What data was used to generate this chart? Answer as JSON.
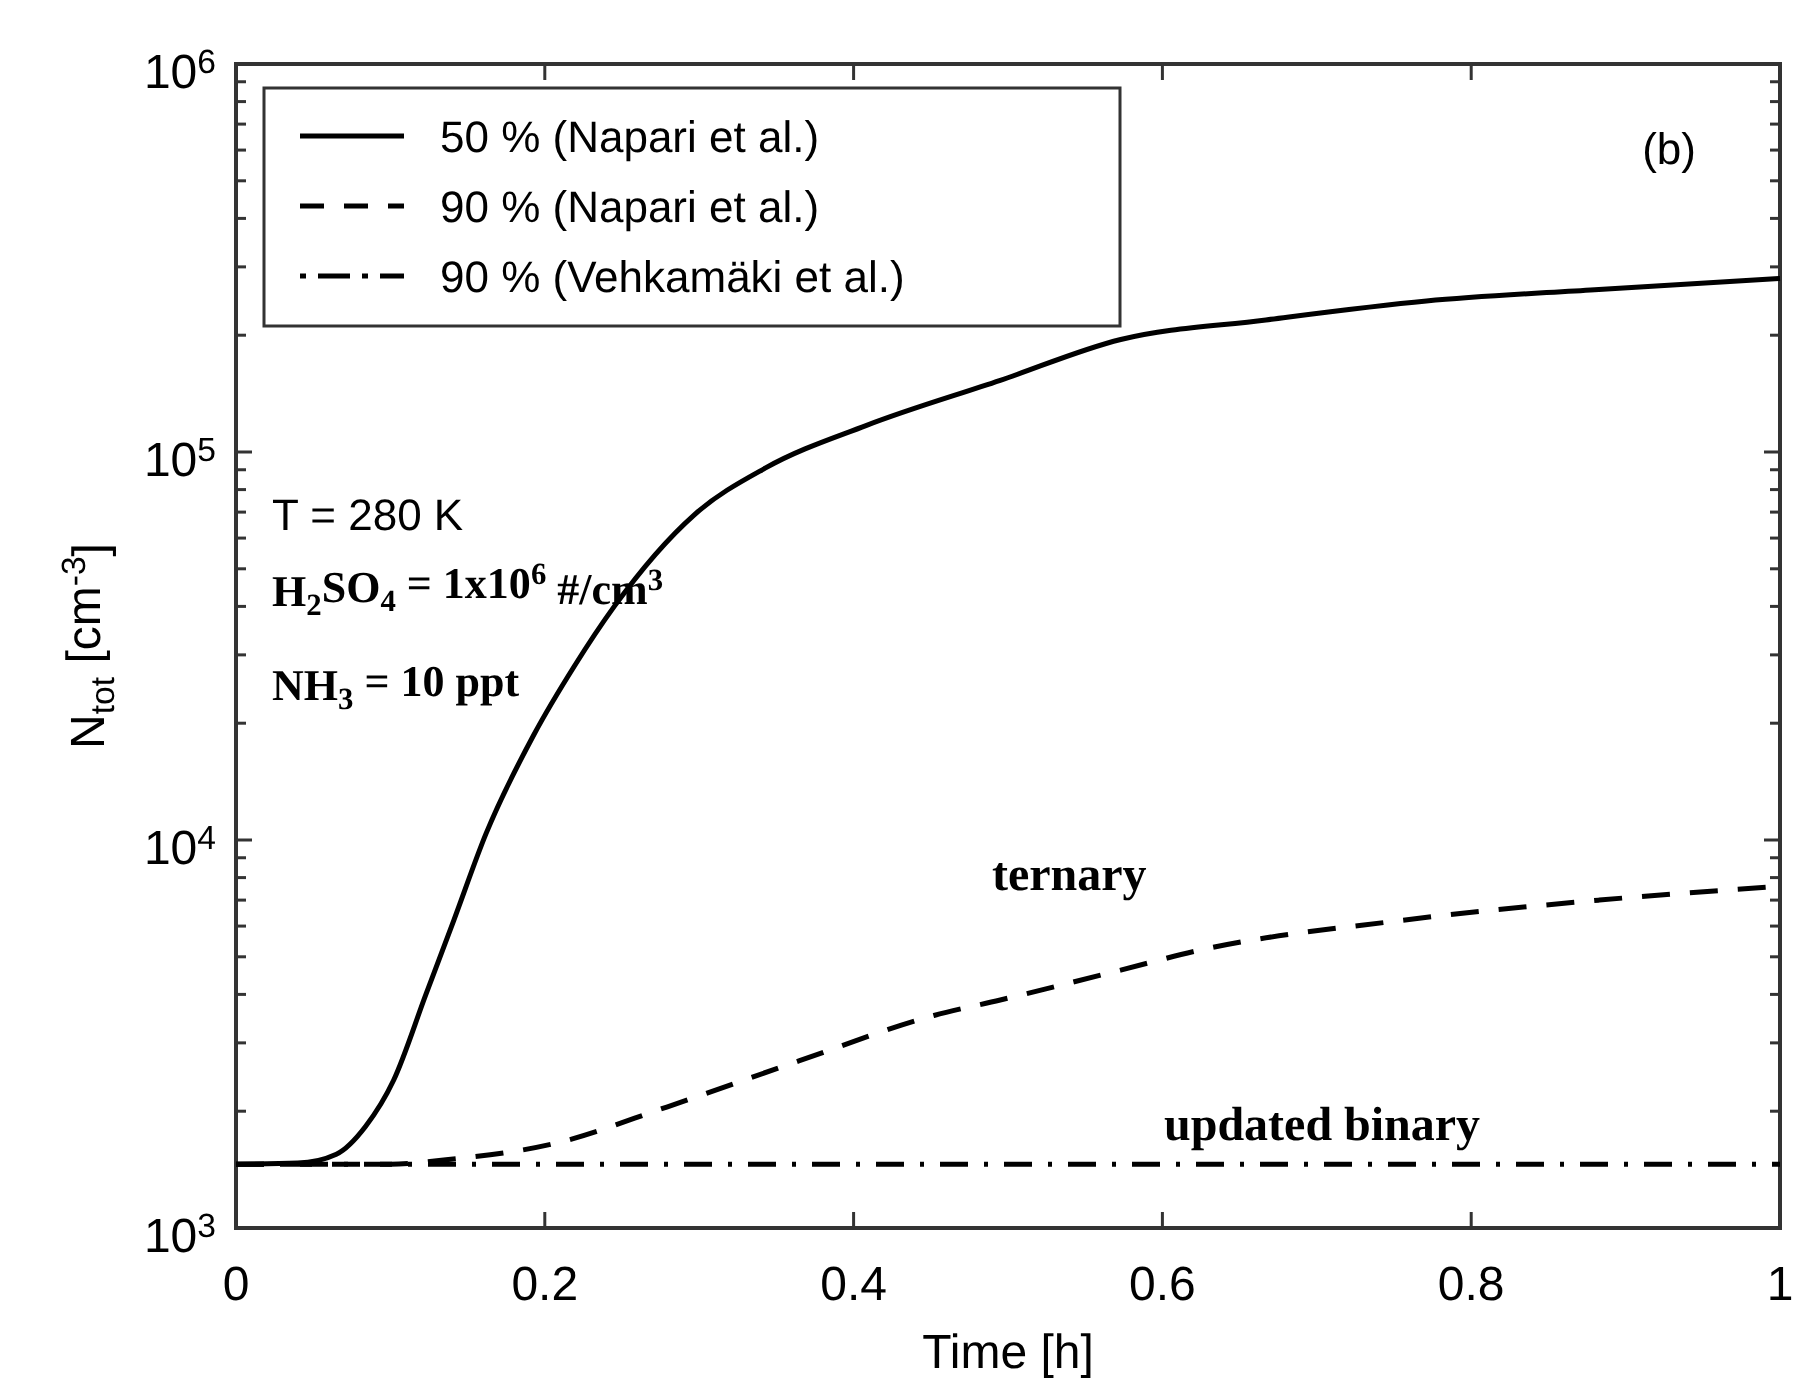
{
  "chart_data": {
    "type": "line",
    "xlabel": "Time  [h]",
    "ylabel": "N$_{tot}$  [cm$^{-3}$]",
    "log": "y",
    "xlim": [
      0,
      1
    ],
    "ylim": [
      1000,
      1000000
    ],
    "xticks": [
      0,
      0.2,
      0.4,
      0.6,
      0.8,
      1
    ],
    "yticks": [
      {
        "value": 1000,
        "label": "10$^{3}$"
      },
      {
        "value": 2000,
        "label": null
      },
      {
        "value": 3000,
        "label": null
      },
      {
        "value": 4000,
        "label": null
      },
      {
        "value": 5000,
        "label": null
      },
      {
        "value": 6000,
        "label": null
      },
      {
        "value": 7000,
        "label": null
      },
      {
        "value": 8000,
        "label": null
      },
      {
        "value": 9000,
        "label": null
      },
      {
        "value": 10000,
        "label": "10$^{4}$"
      },
      {
        "value": 20000,
        "label": null
      },
      {
        "value": 30000,
        "label": null
      },
      {
        "value": 40000,
        "label": null
      },
      {
        "value": 50000,
        "label": null
      },
      {
        "value": 60000,
        "label": null
      },
      {
        "value": 70000,
        "label": null
      },
      {
        "value": 80000,
        "label": null
      },
      {
        "value": 90000,
        "label": null
      },
      {
        "value": 100000,
        "label": "10$^{5}$"
      },
      {
        "value": 200000,
        "label": null
      },
      {
        "value": 300000,
        "label": null
      },
      {
        "value": 400000,
        "label": null
      },
      {
        "value": 500000,
        "label": null
      },
      {
        "value": 600000,
        "label": null
      },
      {
        "value": 700000,
        "label": null
      },
      {
        "value": 800000,
        "label": null
      },
      {
        "value": 900000,
        "label": null
      },
      {
        "value": 1000000,
        "label": "10$^{6}$"
      }
    ],
    "grid": false,
    "legend": "top left",
    "marker": "none",
    "series": [
      {
        "name": "50 % (Napari et al.)",
        "color": "#000000",
        "line_style": "solid",
        "x": [
          0,
          0.04,
          0.065,
          0.084,
          0.102,
          0.123,
          0.141,
          0.162,
          0.193,
          0.219,
          0.245,
          0.297,
          0.343,
          0.408,
          0.495,
          0.573,
          0.667,
          0.771,
          0.88,
          1
        ],
        "values": [
          1460,
          1470,
          1550,
          1830,
          2400,
          4000,
          6200,
          10400,
          18700,
          28000,
          40000,
          69000,
          91000,
          117000,
          153000,
          195000,
          219000,
          245000,
          262000,
          280000
        ]
      },
      {
        "name": "90 % (Napari et al.)",
        "color": "#000000",
        "line_style": "dashed",
        "x": [
          0,
          0.1,
          0.136,
          0.206,
          0.279,
          0.365,
          0.452,
          0.495,
          0.573,
          0.624,
          0.754,
          0.883,
          1
        ],
        "values": [
          1460,
          1460,
          1500,
          1650,
          2050,
          2700,
          3530,
          3870,
          4620,
          5200,
          6200,
          7000,
          7600
        ]
      },
      {
        "name": "90 % (Vehkamäki et al.)",
        "color": "#000000",
        "line_style": "dashdot",
        "x": [
          0,
          1
        ],
        "values": [
          1460,
          1460
        ]
      }
    ],
    "annotations": [
      "(b)",
      "T = 280 K",
      "H$_{2}$SO$_{4}$ = 1x10$^{6}$ #/cm$^{3}$",
      "NH$_{3}$ = 10 ppt",
      "ternary",
      "updated binary"
    ]
  }
}
